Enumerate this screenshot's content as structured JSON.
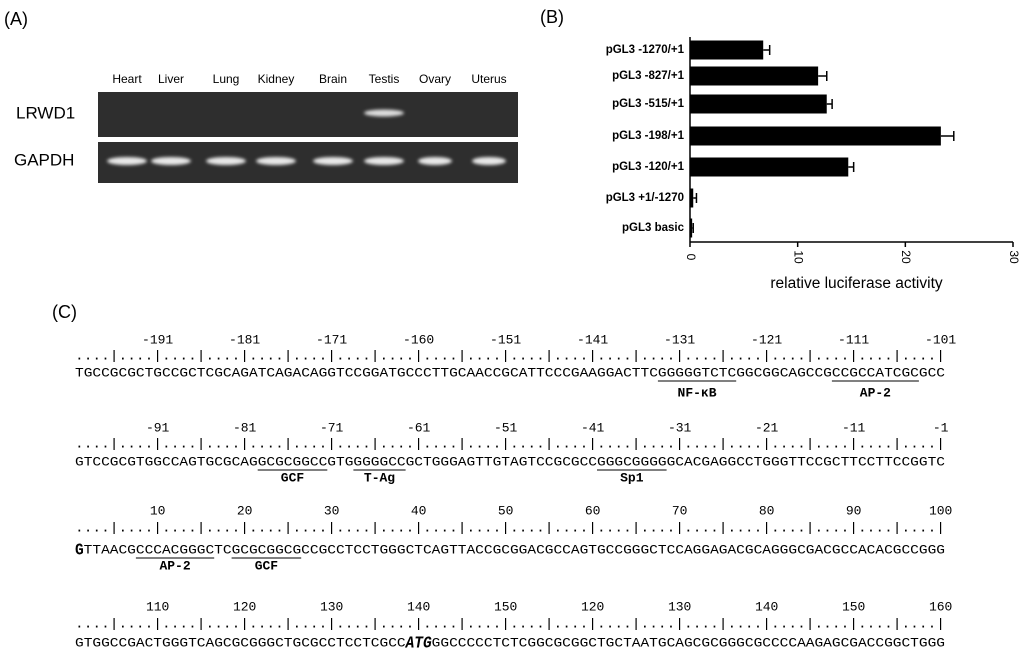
{
  "panel_a": {
    "label": "(A)",
    "lanes": [
      "Heart",
      "Liver",
      "Lung",
      "Kidney",
      "Brain",
      "Testis",
      "Ovary",
      "Uterus"
    ],
    "genes": [
      "LRWD1",
      "GAPDH"
    ]
  },
  "chart_data": {
    "type": "bar",
    "horizontal": true,
    "label": "(B)",
    "categories": [
      "pGL3 -1270/+1",
      "pGL3 -827/+1",
      "pGL3 -515/+1",
      "pGL3 -198/+1",
      "pGL3 -120/+1",
      "pGL3 +1/-1270",
      "pGL3 basic"
    ],
    "values": [
      6.8,
      11.9,
      12.7,
      23.3,
      14.7,
      0.3,
      0.2
    ],
    "errors": [
      0.6,
      0.8,
      0.5,
      1.2,
      0.5,
      0.3,
      0.1
    ],
    "color": "#000000",
    "xlabel": "relative luciferase activity",
    "xlim": [
      0,
      30
    ],
    "xticks": [
      0,
      10,
      20,
      30
    ]
  },
  "panel_c": {
    "label": "(C)",
    "ruler": "....|....|....|....|....|....|....|....|....|....|....|....|....|....|....|....|....|....|....|....|",
    "blocks": [
      {
        "positions": [
          -191,
          -181,
          -171,
          -160,
          -151,
          -141,
          -131,
          -121,
          -111,
          -101
        ],
        "sequence": [
          "TGCCGCGCTGCCGCTCGCAGATCAGACAGGTCCGGATGCCCTTGCAACCGCATTCCCGAAGGACTTCGGGGGTCTCGGCGGCAGCCGCCGCCATCGCGCC"
        ],
        "annotations": [
          "NF-κB",
          "AP-2"
        ]
      },
      {
        "positions": [
          -91,
          -81,
          -71,
          -61,
          -51,
          -41,
          -31,
          -21,
          -11,
          -1
        ],
        "sequence": [
          "GTCCGCGTGGCCAGTGCGCAGGCGCGGCCGTGGGGGCCGCTGGGAGTTGTAGTCCGCGCCGGGCGGGGGCACGAGGCCTGGGTTCCGCTTCCTTCCGGTC"
        ],
        "annotations": [
          "GCF",
          "T-Ag",
          "Sp1"
        ]
      },
      {
        "positions": [
          10,
          20,
          30,
          40,
          50,
          60,
          70,
          80,
          90,
          100
        ],
        "sequence": [
          "G",
          "TTAACGCCCACGGGCTCGCGCGGCGCCGCCTCCTGGGCTCAGTTACCGCGGACGCCAGTGCCGGGCTCCAGGAGACGCAGGGCGACGCCACACGCCGGG"
        ],
        "annotations": [
          "AP-2",
          "GCF"
        ]
      },
      {
        "positions": [
          110,
          120,
          130,
          140,
          150,
          120,
          130,
          140,
          150,
          160
        ],
        "sequence": [
          "GTGGCCGACTGGGTCAGCGCGGGCTGCGCCTCCTCGCC",
          "ATG",
          "GGCCCCCTCTCGGCGCGGCTGCTAATGCAGCGCGGGCGCCCCAAGAGCGACCGGCTGGG"
        ],
        "annotations": []
      }
    ]
  }
}
